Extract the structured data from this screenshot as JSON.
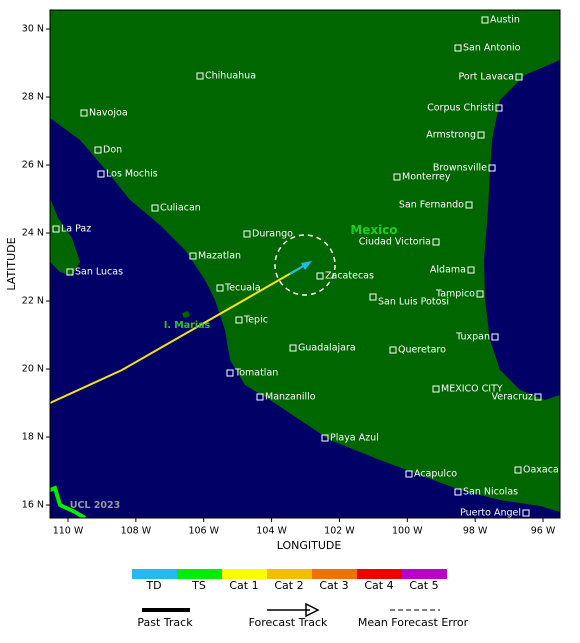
{
  "map": {
    "y_axis_label": "LATITUDE",
    "x_axis_label": "LONGITUDE",
    "lat_ticks": [
      "30 N",
      "28 N",
      "26 N",
      "24 N",
      "22 N",
      "20 N",
      "18 N",
      "16 N"
    ],
    "lon_ticks": [
      "110 W",
      "108 W",
      "106 W",
      "104 W",
      "102 W",
      "100 W",
      "98 W",
      "96 W"
    ],
    "region_labels": [
      "Mexico",
      "I. Marias"
    ],
    "watermark": "UCL 2023",
    "cities": [
      "Austin",
      "San Antonio",
      "Port Lavaca",
      "Corpus Christi",
      "Armstrong",
      "Brownsville",
      "Monterrey",
      "San Fernando",
      "Ciudad Victoria",
      "Aldama",
      "Tampico",
      "Tuxpan",
      "Veracruz",
      "Oaxaca",
      "Puerto Angel",
      "San Nicolas",
      "Acapulco",
      "Playa Azul",
      "Manzanillo",
      "Tomatlan",
      "Guadalajara",
      "Queretaro",
      "MEXICO CITY",
      "San Luis Potosi",
      "Zacatecas",
      "Durango",
      "Mazatlan",
      "Tecuala",
      "Tepic",
      "Culiacan",
      "Los Mochis",
      "Don",
      "Navojoa",
      "Chihuahua",
      "La Paz",
      "San Lucas"
    ]
  },
  "legend": {
    "categories": [
      "TD",
      "TS",
      "Cat 1",
      "Cat 2",
      "Cat 3",
      "Cat 4",
      "Cat 5"
    ],
    "tracks": [
      "Past Track",
      "Forecast Track",
      "Mean Forecast Error"
    ]
  }
}
